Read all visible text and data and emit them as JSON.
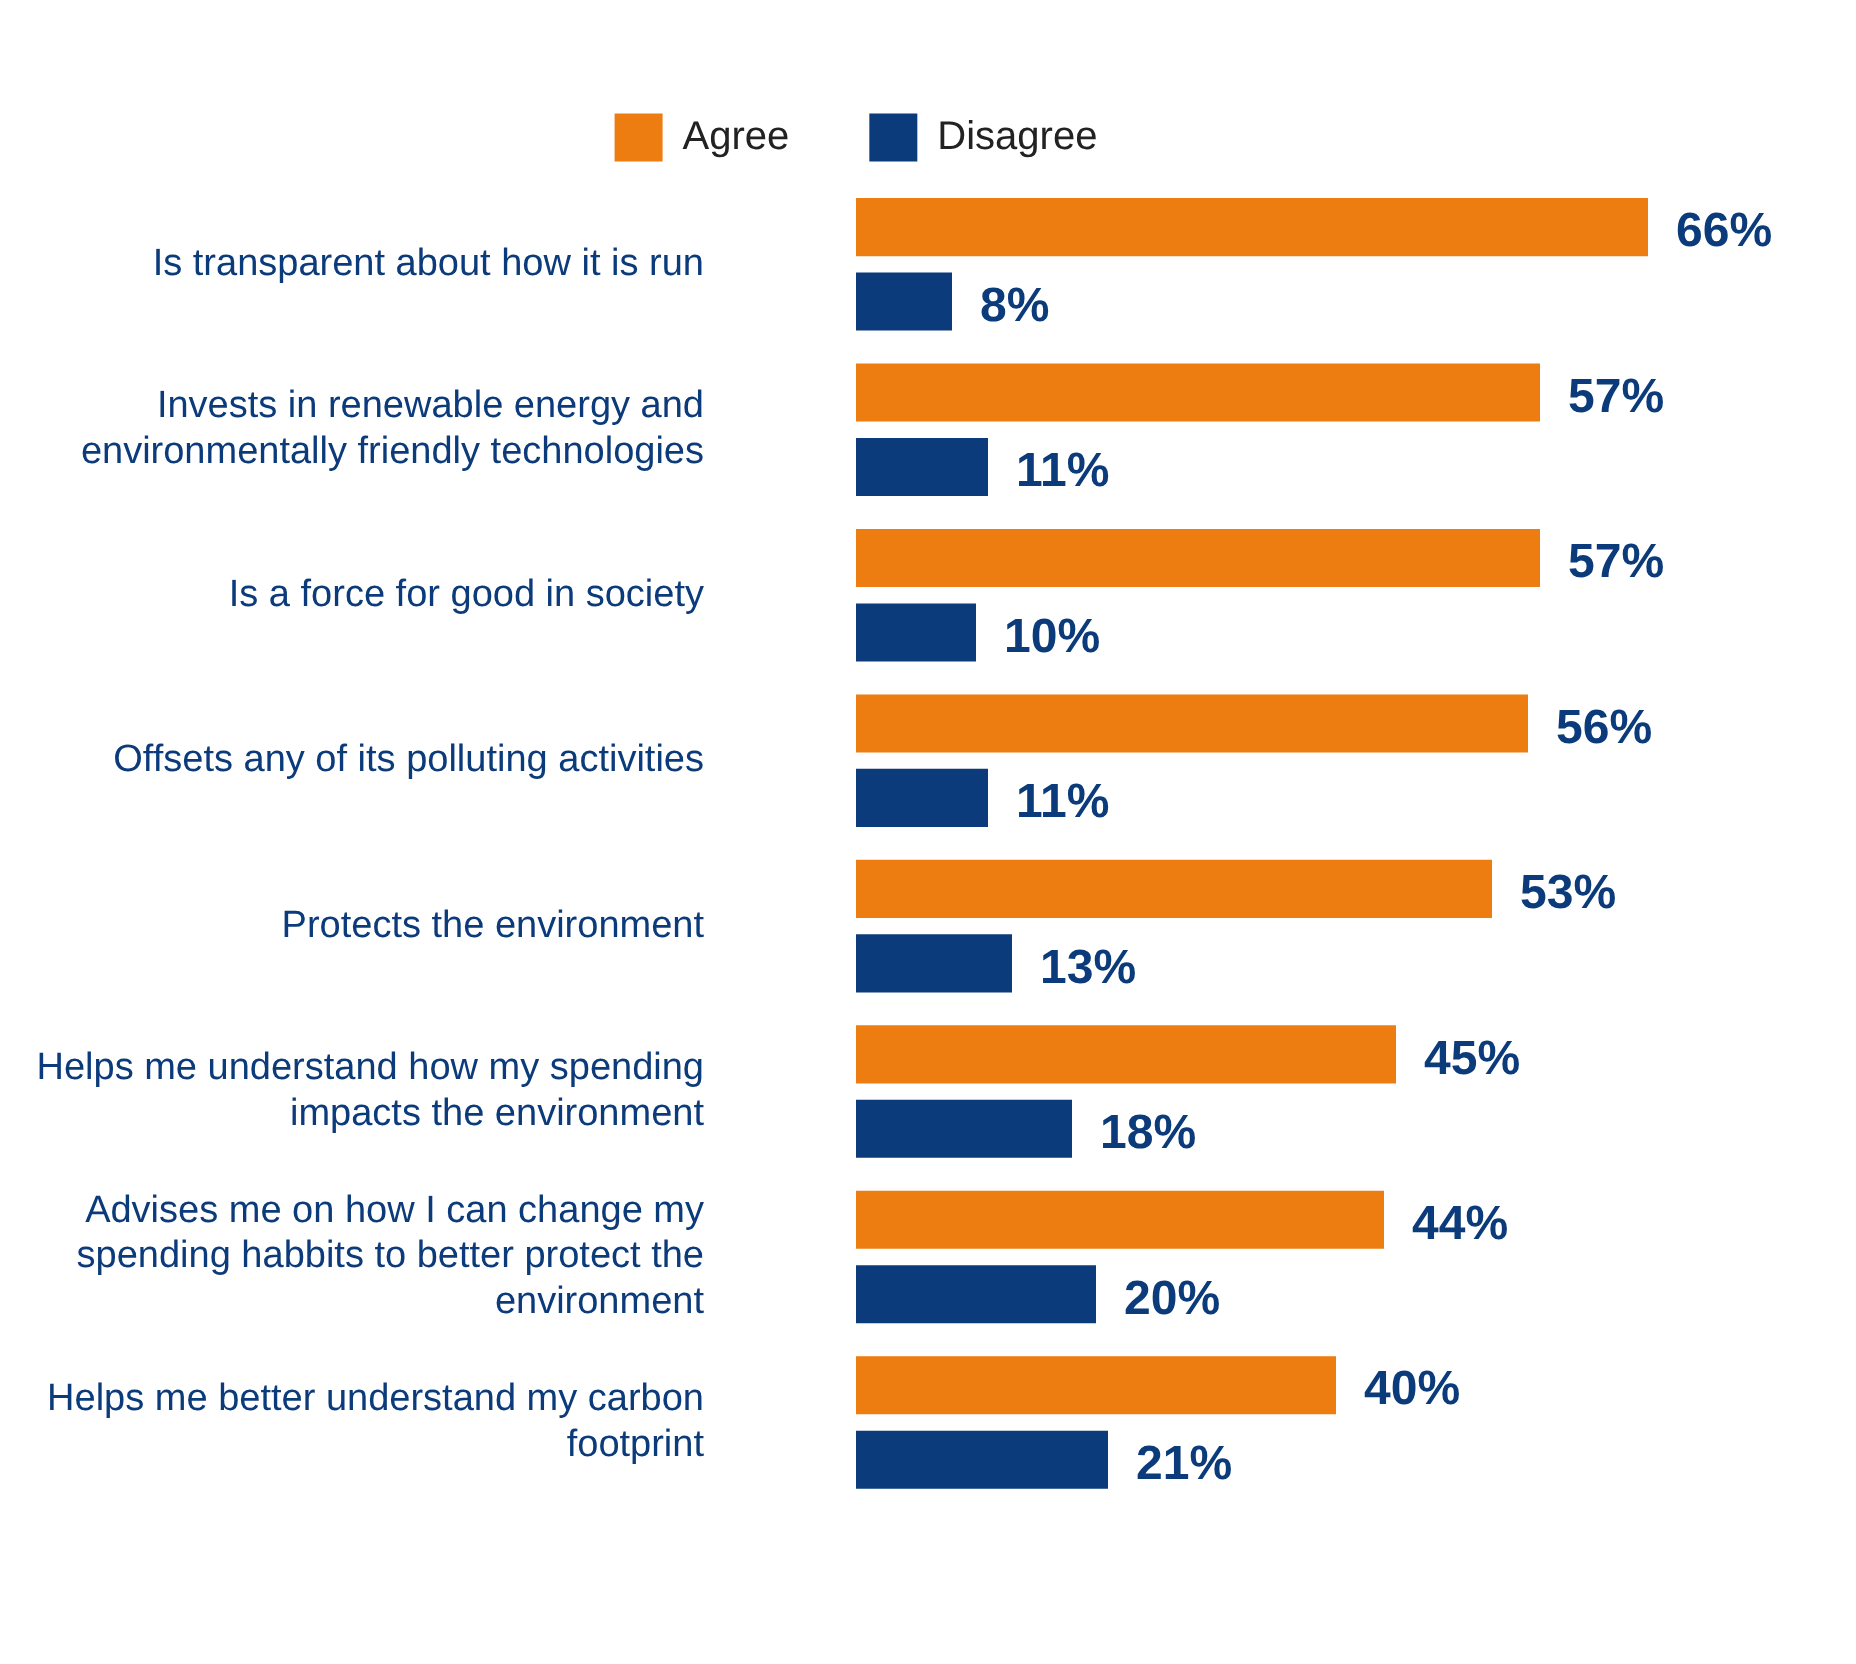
{
  "chart_data": {
    "type": "bar",
    "orientation": "horizontal",
    "legend": "top",
    "tick_labels": "y",
    "categories": [
      "Is transparent about how it is run",
      "Invests in renewable energy and environmentally friendly technologies",
      "Is a force for good in society",
      "Offsets any of its polluting activities",
      "Protects the environment",
      "Helps me understand how my spending impacts the environment",
      "Advises me on how I can change my spending habbits to better protect the environment",
      "Helps me better understand my carbon footprint"
    ],
    "series": [
      {
        "name": "Agree",
        "color": "#ee7d11",
        "values": [
          66,
          57,
          57,
          56,
          53,
          45,
          44,
          40
        ],
        "value_labels": [
          "66%",
          "57%",
          "57%",
          "56%",
          "53%",
          "45%",
          "44%",
          "40%"
        ]
      },
      {
        "name": "Disagree",
        "color": "#0b3b7a",
        "values": [
          8,
          11,
          10,
          11,
          13,
          18,
          20,
          21
        ],
        "value_labels": [
          "8%",
          "11%",
          "10%",
          "11%",
          "13%",
          "18%",
          "20%",
          "21%"
        ]
      }
    ]
  }
}
